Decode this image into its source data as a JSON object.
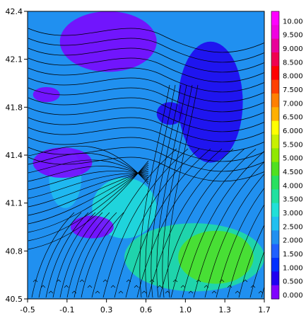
{
  "chart_data": {
    "type": "heatmap",
    "title": "",
    "xlabel": "",
    "ylabel": "",
    "xlim": [
      -0.5,
      1.7
    ],
    "ylim": [
      40.5,
      42.4
    ],
    "x_ticks": [
      "-0.5",
      "-0.1",
      "0.3",
      "0.6",
      "1.0",
      "1.3",
      "1.7"
    ],
    "y_ticks": [
      "42.4",
      "42.1",
      "41.8",
      "41.4",
      "41.1",
      "40.8",
      "40.5"
    ],
    "overlay": "streamlines",
    "grid": false,
    "legend": "colorbar-right",
    "colorbar": {
      "labels": [
        "10.00",
        "9.500",
        "9.000",
        "8.500",
        "8.000",
        "7.500",
        "7.000",
        "6.500",
        "6.000",
        "5.500",
        "5.000",
        "4.500",
        "4.000",
        "3.500",
        "3.000",
        "2.500",
        "2.000",
        "1.500",
        "1.000",
        "0.500",
        "0.000"
      ],
      "colors": [
        "#ff00ff",
        "#f000e0",
        "#e8009a",
        "#f00050",
        "#ff0000",
        "#ff4000",
        "#ff8000",
        "#ffb000",
        "#ffff00",
        "#c8f000",
        "#90e800",
        "#50e020",
        "#28e060",
        "#20e0a0",
        "#20e0d8",
        "#20c0f0",
        "#2090f0",
        "#2060ff",
        "#0030ff",
        "#2000f0",
        "#8000ff"
      ]
    },
    "field_regions": [
      {
        "x": [
          -0.5,
          1.7
        ],
        "y": [
          40.5,
          42.4
        ],
        "value": 1.8
      },
      {
        "x": [
          0.4,
          1.7
        ],
        "y": [
          40.55,
          41.0
        ],
        "value": 3.5
      },
      {
        "x": [
          0.9,
          1.6
        ],
        "y": [
          40.6,
          40.95
        ],
        "value": 4.3
      },
      {
        "x": [
          0.1,
          0.7
        ],
        "y": [
          40.9,
          41.3
        ],
        "value": 2.8
      },
      {
        "x": [
          -0.3,
          0.0
        ],
        "y": [
          41.1,
          41.5
        ],
        "value": 2.7
      },
      {
        "x": [
          -0.2,
          0.7
        ],
        "y": [
          42.0,
          42.4
        ],
        "value": 0.2
      },
      {
        "x": [
          0.9,
          1.5
        ],
        "y": [
          41.4,
          42.2
        ],
        "value": 0.7
      },
      {
        "x": [
          -0.45,
          -0.2
        ],
        "y": [
          41.8,
          41.9
        ],
        "value": 0.1
      },
      {
        "x": [
          -0.45,
          0.1
        ],
        "y": [
          41.3,
          41.5
        ],
        "value": 0.2
      },
      {
        "x": [
          -0.1,
          0.3
        ],
        "y": [
          40.9,
          41.05
        ],
        "value": 0.2
      },
      {
        "x": [
          0.7,
          0.95
        ],
        "y": [
          41.65,
          41.8
        ],
        "value": 0.4
      }
    ]
  }
}
